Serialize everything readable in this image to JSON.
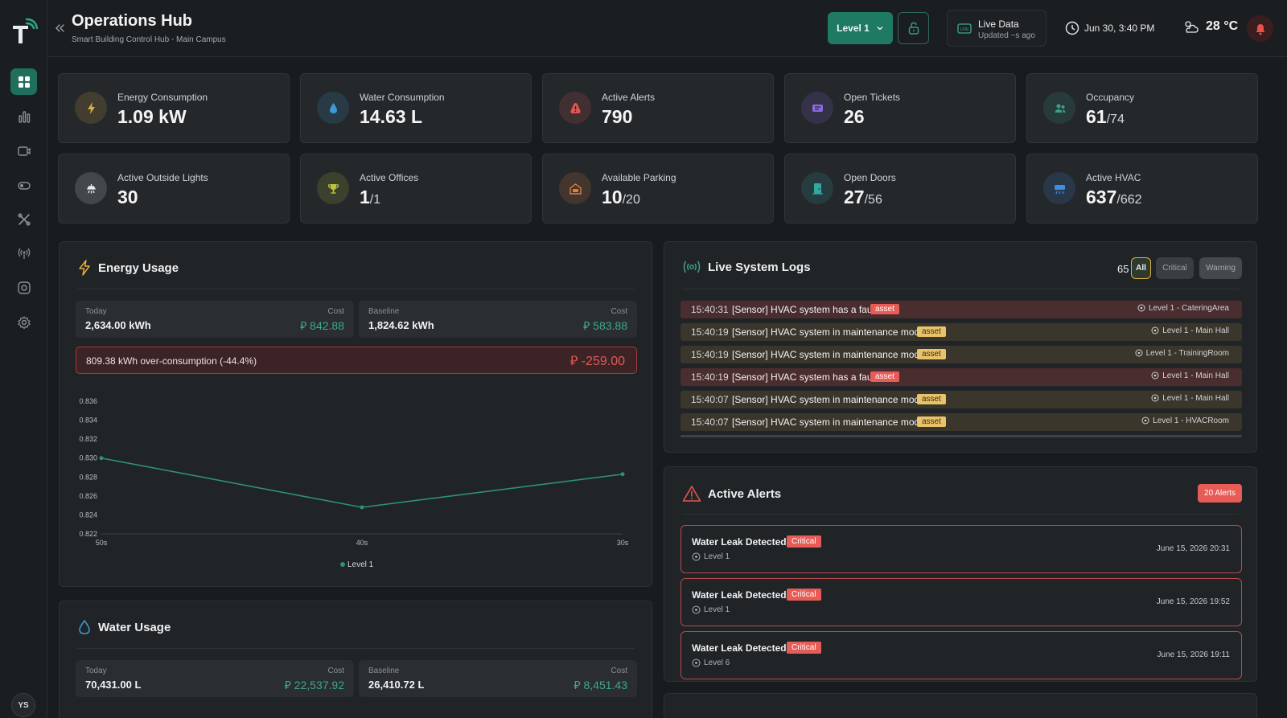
{
  "header": {
    "title": "Operations Hub",
    "subtitle": "Smart Building Control Hub - Main Campus",
    "level_label": "Level 1",
    "live_title": "Live Data",
    "live_sub": "Updated ~s ago",
    "datetime": "Jun 30, 3:40 PM",
    "temperature": "28 °C"
  },
  "user": {
    "initials": "YS"
  },
  "stats": [
    {
      "label": "Energy Consumption",
      "value": "1.09 kW",
      "sub": "",
      "icon": "bolt-icon",
      "color": "#e0b13c"
    },
    {
      "label": "Water Consumption",
      "value": "14.63 L",
      "sub": "",
      "icon": "water-drop-icon",
      "color": "#3d9ad6"
    },
    {
      "label": "Active Alerts",
      "value": "790",
      "sub": "",
      "icon": "alert-icon",
      "color": "#e0574f"
    },
    {
      "label": "Open Tickets",
      "value": "26",
      "sub": "",
      "icon": "ticket-icon",
      "color": "#8a6ae0"
    },
    {
      "label": "Occupancy",
      "value": "61",
      "sub": "/74",
      "icon": "people-icon",
      "color": "#3aa189"
    },
    {
      "label": "Active Outside Lights",
      "value": "30",
      "sub": "",
      "icon": "light-icon",
      "color": "#e8eaec"
    },
    {
      "label": "Active Offices",
      "value": "1",
      "sub": "/1",
      "icon": "trophy-icon",
      "color": "#b9c43a"
    },
    {
      "label": "Available Parking",
      "value": "10",
      "sub": "/20",
      "icon": "garage-icon",
      "color": "#e0803c"
    },
    {
      "label": "Open Doors",
      "value": "27",
      "sub": "/56",
      "icon": "door-icon",
      "color": "#33a8a0"
    },
    {
      "label": "Active HVAC",
      "value": "637",
      "sub": "/662",
      "icon": "hvac-icon",
      "color": "#3d8fe0"
    }
  ],
  "energy": {
    "title": "Energy Usage",
    "today_label": "Today",
    "today_value": "2,634.00 kWh",
    "today_cost_label": "Cost",
    "today_cost": "⃁ 842.88",
    "baseline_label": "Baseline",
    "baseline_value": "1,824.62 kWh",
    "baseline_cost_label": "Cost",
    "baseline_cost": "⃁ 583.88",
    "over_text": "809.38 kWh over-consumption (-44.4%)",
    "over_cost": "⃁ -259.00"
  },
  "chart_data": {
    "type": "line",
    "categories": [
      "50s",
      "40s",
      "30s"
    ],
    "series": [
      {
        "name": "Level 1",
        "values": [
          0.83,
          0.8248,
          0.8283
        ],
        "color": "#2f8f78"
      }
    ],
    "ylim": [
      0.822,
      0.836
    ],
    "yticks": [
      "0.836",
      "0.834",
      "0.832",
      "0.830",
      "0.828",
      "0.826",
      "0.824",
      "0.822"
    ],
    "legend": "bottom",
    "grid": false
  },
  "water": {
    "title": "Water Usage",
    "today_label": "Today",
    "today_value": "70,431.00 L",
    "today_cost_label": "Cost",
    "today_cost": "⃁ 22,537.92",
    "baseline_label": "Baseline",
    "baseline_value": "26,410.72 L",
    "baseline_cost_label": "Cost",
    "baseline_cost": "⃁ 8,451.43"
  },
  "logs": {
    "title": "Live System Logs",
    "count": "65",
    "filters": [
      "All",
      "Critical",
      "Warning"
    ],
    "rows": [
      {
        "time": "15:40:31",
        "msg": "[Sensor] HVAC system has a fault",
        "tag": "asset",
        "loc": "Level 1 - CateringArea",
        "kind": "fault"
      },
      {
        "time": "15:40:19",
        "msg": "[Sensor] HVAC system in maintenance mode",
        "tag": "asset",
        "loc": "Level 1 - Main Hall",
        "kind": "maint"
      },
      {
        "time": "15:40:19",
        "msg": "[Sensor] HVAC system in maintenance mode",
        "tag": "asset",
        "loc": "Level 1 - TrainingRoom",
        "kind": "maint"
      },
      {
        "time": "15:40:19",
        "msg": "[Sensor] HVAC system has a fault",
        "tag": "asset",
        "loc": "Level 1 - Main Hall",
        "kind": "fault"
      },
      {
        "time": "15:40:07",
        "msg": "[Sensor] HVAC system in maintenance mode",
        "tag": "asset",
        "loc": "Level 1 - Main Hall",
        "kind": "maint"
      },
      {
        "time": "15:40:07",
        "msg": "[Sensor] HVAC system in maintenance mode",
        "tag": "asset",
        "loc": "Level 1 - HVACRoom",
        "kind": "maint"
      }
    ]
  },
  "alerts": {
    "title": "Active Alerts",
    "badge": "20 Alerts",
    "items": [
      {
        "title": "Water Leak Detected",
        "severity": "Critical",
        "loc": "Level 1",
        "date": "June 15, 2026 20:31"
      },
      {
        "title": "Water Leak Detected",
        "severity": "Critical",
        "loc": "Level 1",
        "date": "June 15, 2026 19:52"
      },
      {
        "title": "Water Leak Detected",
        "severity": "Critical",
        "loc": "Level 6",
        "date": "June 15, 2026 19:11"
      }
    ]
  }
}
